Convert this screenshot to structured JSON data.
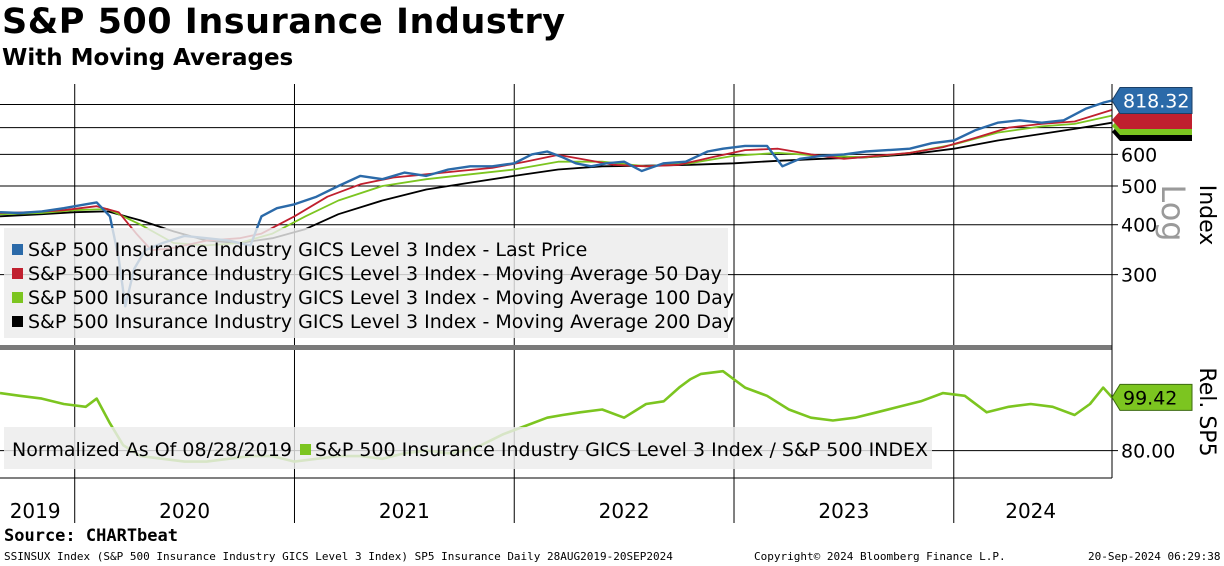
{
  "header": {
    "title": "S&P 500 Insurance Industry",
    "subtitle": "With Moving Averages"
  },
  "footer": {
    "source": "Source: CHARTbeat",
    "security": "SSINSUX Index (S&P 500 Insurance Industry GICS Level 3 Index) SP5 Insurance  Daily 28AUG2019-20SEP2024",
    "copyright": "Copyright© 2024 Bloomberg Finance L.P.",
    "timestamp": "20-Sep-2024 06:29:38"
  },
  "colors": {
    "last_price": "#2b6aa9",
    "ma50": "#c0202f",
    "ma100": "#7cc520",
    "ma200": "#000000",
    "relative": "#7cc520",
    "price_tag": "#2b6aa9",
    "rel_tag": "#7cc520"
  },
  "chart_data": [
    {
      "type": "line",
      "panel": "upper",
      "scale": "log",
      "ylabel": "Index",
      "scale_label": "Log",
      "yticks": [
        300,
        400,
        500,
        600
      ],
      "ylim": [
        200,
        900
      ],
      "xlim": [
        2019.66,
        2024.72
      ],
      "x_ticks": [
        "2019",
        "2020",
        "2021",
        "2022",
        "2023",
        "2024"
      ],
      "last_value_label": "818.32",
      "legend_entries": [
        "S&P 500 Insurance Industry GICS Level 3 Index - Last Price",
        "S&P 500 Insurance Industry GICS Level 3 Index - Moving Average 50 Day",
        "S&P 500 Insurance Industry GICS Level 3 Index - Moving Average 100 Day",
        "S&P 500 Insurance Industry GICS Level 3 Index - Moving Average 200 Day"
      ],
      "series": [
        {
          "name": "Last Price",
          "x": [
            2019.66,
            2019.75,
            2019.85,
            2019.95,
            2020.05,
            2020.1,
            2020.16,
            2020.2,
            2020.23,
            2020.27,
            2020.32,
            2020.4,
            2020.5,
            2020.6,
            2020.7,
            2020.8,
            2020.85,
            2020.92,
            2021.0,
            2021.1,
            2021.2,
            2021.3,
            2021.4,
            2021.5,
            2021.6,
            2021.7,
            2021.8,
            2021.9,
            2022.0,
            2022.08,
            2022.15,
            2022.22,
            2022.28,
            2022.35,
            2022.42,
            2022.5,
            2022.58,
            2022.68,
            2022.78,
            2022.88,
            2022.95,
            2023.05,
            2023.15,
            2023.22,
            2023.3,
            2023.4,
            2023.5,
            2023.6,
            2023.7,
            2023.8,
            2023.9,
            2024.0,
            2024.1,
            2024.2,
            2024.3,
            2024.4,
            2024.5,
            2024.6,
            2024.68,
            2024.72
          ],
          "values": [
            430,
            428,
            432,
            440,
            450,
            455,
            420,
            330,
            250,
            310,
            345,
            360,
            375,
            370,
            365,
            355,
            420,
            440,
            450,
            470,
            500,
            530,
            520,
            540,
            530,
            550,
            560,
            560,
            570,
            600,
            610,
            590,
            570,
            560,
            570,
            575,
            545,
            570,
            575,
            610,
            620,
            630,
            630,
            560,
            585,
            595,
            600,
            610,
            615,
            620,
            640,
            650,
            690,
            720,
            730,
            720,
            730,
            780,
            808,
            818.32
          ]
        },
        {
          "name": "Moving Average 50 Day",
          "x": [
            2019.66,
            2019.8,
            2019.95,
            2020.1,
            2020.2,
            2020.28,
            2020.35,
            2020.45,
            2020.6,
            2020.75,
            2020.85,
            2021.0,
            2021.15,
            2021.3,
            2021.45,
            2021.6,
            2021.75,
            2021.9,
            2022.05,
            2022.2,
            2022.3,
            2022.45,
            2022.6,
            2022.75,
            2022.9,
            2023.05,
            2023.2,
            2023.35,
            2023.5,
            2023.65,
            2023.8,
            2023.95,
            2024.1,
            2024.25,
            2024.4,
            2024.55,
            2024.72
          ],
          "values": [
            428,
            430,
            435,
            445,
            430,
            380,
            345,
            350,
            365,
            370,
            380,
            420,
            470,
            505,
            525,
            535,
            545,
            555,
            575,
            598,
            585,
            565,
            560,
            565,
            590,
            615,
            620,
            600,
            585,
            595,
            605,
            625,
            660,
            700,
            715,
            725,
            775
          ]
        },
        {
          "name": "Moving Average 100 Day",
          "x": [
            2019.66,
            2019.85,
            2020.0,
            2020.15,
            2020.3,
            2020.45,
            2020.6,
            2020.75,
            2020.9,
            2021.05,
            2021.2,
            2021.4,
            2021.6,
            2021.8,
            2022.0,
            2022.2,
            2022.4,
            2022.6,
            2022.8,
            2023.0,
            2023.2,
            2023.4,
            2023.6,
            2023.8,
            2024.0,
            2024.2,
            2024.4,
            2024.55,
            2024.72
          ],
          "values": [
            425,
            428,
            435,
            438,
            400,
            360,
            355,
            360,
            380,
            420,
            460,
            500,
            520,
            535,
            550,
            575,
            575,
            560,
            570,
            595,
            605,
            595,
            590,
            605,
            635,
            680,
            705,
            715,
            750
          ]
        },
        {
          "name": "Moving Average 200 Day",
          "x": [
            2019.66,
            2019.85,
            2020.0,
            2020.15,
            2020.3,
            2020.45,
            2020.6,
            2020.75,
            2020.9,
            2021.05,
            2021.2,
            2021.4,
            2021.6,
            2021.8,
            2022.0,
            2022.2,
            2022.4,
            2022.6,
            2022.8,
            2023.0,
            2023.2,
            2023.4,
            2023.6,
            2023.8,
            2024.0,
            2024.2,
            2024.4,
            2024.55,
            2024.72
          ],
          "values": [
            420,
            425,
            430,
            432,
            410,
            385,
            365,
            360,
            370,
            390,
            425,
            460,
            490,
            510,
            530,
            550,
            560,
            562,
            565,
            570,
            578,
            585,
            590,
            600,
            620,
            650,
            675,
            695,
            720
          ]
        }
      ]
    },
    {
      "type": "line",
      "panel": "lower",
      "ylabel": "Rel. SP5",
      "yticks": [
        80
      ],
      "ytick_labels": [
        "80.00"
      ],
      "ylim": [
        70,
        116
      ],
      "xlim": [
        2019.66,
        2024.72
      ],
      "last_value_label": "99.42",
      "legend_prefix": "Normalized As Of 08/28/2019",
      "legend_entries": [
        "S&P 500 Insurance Industry GICS Level 3 Index / S&P 500 INDEX"
      ],
      "series": [
        {
          "name": "S&P 500 Insurance Industry GICS Level 3 Index / S&P 500 INDEX",
          "x": [
            2019.66,
            2019.75,
            2019.85,
            2019.95,
            2020.05,
            2020.1,
            2020.16,
            2020.22,
            2020.3,
            2020.4,
            2020.5,
            2020.6,
            2020.7,
            2020.8,
            2020.9,
            2021.0,
            2021.1,
            2021.2,
            2021.3,
            2021.4,
            2021.5,
            2021.6,
            2021.7,
            2021.78,
            2021.85,
            2021.95,
            2022.05,
            2022.15,
            2022.22,
            2022.3,
            2022.4,
            2022.5,
            2022.6,
            2022.68,
            2022.75,
            2022.8,
            2022.85,
            2022.95,
            2023.05,
            2023.15,
            2023.25,
            2023.35,
            2023.45,
            2023.55,
            2023.65,
            2023.75,
            2023.85,
            2023.95,
            2024.05,
            2024.15,
            2024.25,
            2024.35,
            2024.45,
            2024.55,
            2024.62,
            2024.68,
            2024.72
          ],
          "values": [
            101,
            100,
            99,
            97,
            96,
            99,
            90,
            82,
            78,
            77,
            76,
            76,
            77,
            78,
            78,
            76,
            77,
            78,
            78,
            77,
            79,
            80,
            79,
            80,
            82,
            86,
            89,
            92,
            93,
            94,
            95,
            92,
            97,
            98,
            103,
            106,
            108,
            109,
            103,
            100,
            95,
            92,
            91,
            92,
            94,
            96,
            98,
            101,
            100,
            94,
            96,
            97,
            96,
            93,
            97,
            103,
            99.42
          ]
        }
      ]
    }
  ]
}
